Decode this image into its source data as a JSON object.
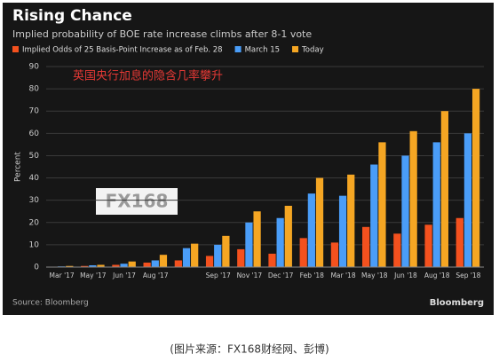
{
  "chart_data": {
    "type": "bar",
    "title": "Rising Chance",
    "subtitle": "Implied probability of BOE rate increase climbs after 8-1 vote",
    "annotation": "英国央行加息的隐含几率攀升",
    "watermark": "FX168",
    "y_label": "Percent",
    "source": "Source: Bloomberg",
    "brand": "Bloomberg",
    "caption": "(图片来源：FX168财经网、彭博)",
    "categories": [
      "Mar '17",
      "May '17",
      "Jun '17",
      "Aug '17",
      null,
      "Sep '17",
      "Nov '17",
      "Dec '17",
      "Feb '18",
      "Mar '18",
      "May '18",
      "Jun '18",
      "Aug '18",
      "Sep '18"
    ],
    "series": [
      {
        "name": "Implied Odds of 25 Basis-Point Increase as of Feb. 28",
        "color": "#f4511e",
        "values": [
          0.2,
          0.5,
          1,
          2,
          3,
          5,
          8,
          6,
          13,
          11,
          18,
          15,
          19,
          22
        ]
      },
      {
        "name": "March 15",
        "color": "#4a9df8",
        "values": [
          0.3,
          0.8,
          1.5,
          3,
          8.5,
          10,
          20,
          22,
          33,
          32,
          46,
          50,
          56,
          60
        ]
      },
      {
        "name": "Today",
        "color": "#f5a623",
        "values": [
          0.5,
          1,
          2.5,
          5.5,
          10.5,
          14,
          25,
          27.5,
          40,
          41.5,
          56,
          61,
          70,
          80
        ]
      }
    ],
    "ylim": [
      0,
      90
    ],
    "yticks": [
      0,
      10,
      20,
      30,
      40,
      50,
      60,
      70,
      80,
      90
    ],
    "grid": true
  }
}
